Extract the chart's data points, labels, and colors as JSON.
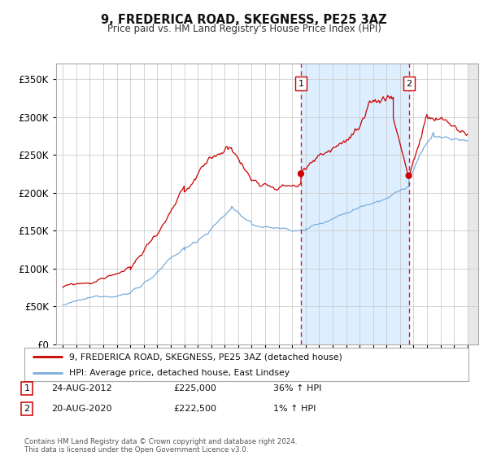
{
  "title": "9, FREDERICA ROAD, SKEGNESS, PE25 3AZ",
  "subtitle": "Price paid vs. HM Land Registry's House Price Index (HPI)",
  "legend_line1": "9, FREDERICA ROAD, SKEGNESS, PE25 3AZ (detached house)",
  "legend_line2": "HPI: Average price, detached house, East Lindsey",
  "footer": "Contains HM Land Registry data © Crown copyright and database right 2024.\nThis data is licensed under the Open Government Licence v3.0.",
  "sale1_date": "24-AUG-2012",
  "sale1_price": "£225,000",
  "sale1_hpi": "36% ↑ HPI",
  "sale2_date": "20-AUG-2020",
  "sale2_price": "£222,500",
  "sale2_hpi": "1% ↑ HPI",
  "red_line_color": "#cc0000",
  "blue_line_color": "#7aaddd",
  "shaded_bg": "#ddeeff",
  "grid_color": "#cccccc",
  "plot_bg": "#ffffff",
  "fig_bg": "#ffffff",
  "ylim": [
    0,
    370000
  ],
  "yticks": [
    0,
    50000,
    100000,
    150000,
    200000,
    250000,
    300000,
    350000
  ],
  "sale1_x_year": 2012.65,
  "sale1_price_val": 225000,
  "sale2_x_year": 2020.65,
  "sale2_price_val": 222500,
  "xmin": 1994.5,
  "xmax": 2025.8
}
